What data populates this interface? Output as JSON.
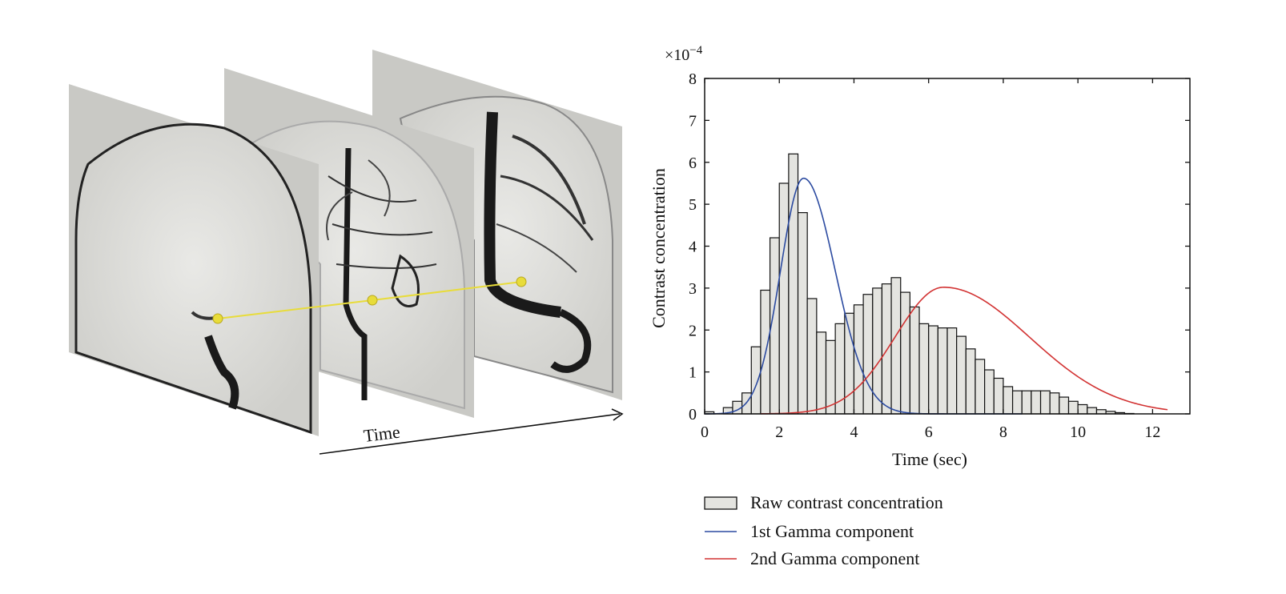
{
  "left_panel": {
    "time_axis_label": "Time",
    "frame_count": 3
  },
  "chart_data": {
    "type": "bar",
    "title": "",
    "xlabel": "Time (sec)",
    "ylabel": "Contrast concentration",
    "y_exponent_label": "×10",
    "y_exponent_power": "−4",
    "xlim": [
      0,
      13
    ],
    "ylim": [
      0,
      8
    ],
    "xticks": [
      "0",
      "2",
      "4",
      "6",
      "8",
      "10",
      "12"
    ],
    "yticks": [
      "0",
      "1",
      "2",
      "3",
      "4",
      "5",
      "6",
      "7",
      "8"
    ],
    "grid": false,
    "legend_position": "bottom",
    "bar_width": 0.25,
    "bars": {
      "x": [
        0.0,
        0.25,
        0.5,
        0.75,
        1.0,
        1.25,
        1.5,
        1.75,
        2.0,
        2.25,
        2.5,
        2.75,
        3.0,
        3.25,
        3.5,
        3.75,
        4.0,
        4.25,
        4.5,
        4.75,
        5.0,
        5.25,
        5.5,
        5.75,
        6.0,
        6.25,
        6.5,
        6.75,
        7.0,
        7.25,
        7.5,
        7.75,
        8.0,
        8.25,
        8.5,
        8.75,
        9.0,
        9.25,
        9.5,
        9.75,
        10.0,
        10.25,
        10.5,
        10.75,
        11.0,
        11.25,
        11.5,
        11.75,
        12.0,
        12.25
      ],
      "values": [
        0.05,
        0.0,
        0.15,
        0.3,
        0.5,
        1.6,
        2.95,
        4.2,
        5.5,
        6.2,
        4.8,
        2.75,
        1.95,
        1.75,
        2.15,
        2.4,
        2.6,
        2.85,
        3.0,
        3.1,
        3.25,
        2.9,
        2.55,
        2.15,
        2.1,
        2.05,
        2.05,
        1.85,
        1.55,
        1.3,
        1.05,
        0.85,
        0.65,
        0.55,
        0.55,
        0.55,
        0.55,
        0.5,
        0.4,
        0.3,
        0.22,
        0.15,
        0.1,
        0.06,
        0.03,
        0.01,
        0.0,
        0.0,
        0.0,
        0.0
      ]
    },
    "series": [
      {
        "name": "Raw contrast concentration",
        "kind": "bar",
        "color": "#e4e4e0",
        "edge": "#111111"
      },
      {
        "name": "1st Gamma component",
        "kind": "line",
        "color": "#2b4aa0",
        "peak_x": 2.65,
        "peak_y": 5.62,
        "sigma_left": 0.62,
        "sigma_right": 0.85,
        "x_end": 8.5
      },
      {
        "name": "2nd Gamma component",
        "kind": "line",
        "color": "#d23232",
        "peak_x": 6.4,
        "peak_y": 3.02,
        "sigma_left": 1.3,
        "sigma_right": 2.3,
        "x_start": 1.5,
        "x_end": 12.4
      }
    ]
  }
}
